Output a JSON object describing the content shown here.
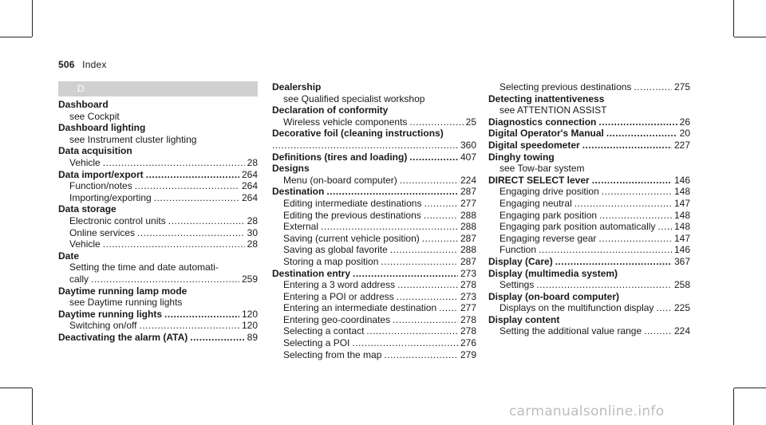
{
  "header": {
    "page_number": "506",
    "section": "Index"
  },
  "band_letter": "D",
  "col1": [
    {
      "t": "h",
      "text": "Dashboard"
    },
    {
      "t": "s",
      "text": "see Cockpit"
    },
    {
      "t": "h",
      "text": "Dashboard lighting"
    },
    {
      "t": "s",
      "text": "see Instrument cluster lighting"
    },
    {
      "t": "h",
      "text": "Data acquisition"
    },
    {
      "t": "sp",
      "text": "Vehicle",
      "page": "28"
    },
    {
      "t": "hp",
      "text": "Data import/export",
      "page": "264"
    },
    {
      "t": "sp",
      "text": "Function/notes",
      "page": "264"
    },
    {
      "t": "sp",
      "text": "Importing/exporting",
      "page": "264"
    },
    {
      "t": "h",
      "text": "Data storage"
    },
    {
      "t": "sp",
      "text": "Electronic control units",
      "page": "28"
    },
    {
      "t": "sp",
      "text": "Online services",
      "page": "30"
    },
    {
      "t": "sp",
      "text": "Vehicle",
      "page": "28"
    },
    {
      "t": "h",
      "text": "Date"
    },
    {
      "t": "s",
      "text": "Setting the time and date automati-"
    },
    {
      "t": "sp",
      "text": "cally",
      "page": "259"
    },
    {
      "t": "h",
      "text": "Daytime running lamp mode"
    },
    {
      "t": "s",
      "text": "see Daytime running lights"
    },
    {
      "t": "hp",
      "text": "Daytime running lights",
      "page": "120"
    },
    {
      "t": "sp",
      "text": "Switching on/off",
      "page": "120"
    },
    {
      "t": "hp",
      "text": "Deactivating the alarm (ATA)",
      "page": "89"
    }
  ],
  "col2": [
    {
      "t": "h",
      "text": "Dealership"
    },
    {
      "t": "s",
      "text": "see Qualified specialist workshop"
    },
    {
      "t": "h",
      "text": "Declaration of conformity"
    },
    {
      "t": "sp",
      "text": "Wireless vehicle components",
      "page": "25"
    },
    {
      "t": "h",
      "text": "Decorative foil (cleaning instructions)"
    },
    {
      "t": "dp",
      "page": "360"
    },
    {
      "t": "hp",
      "text": "Definitions (tires and loading)",
      "page": "407"
    },
    {
      "t": "h",
      "text": "Designs"
    },
    {
      "t": "sp",
      "text": "Menu (on-board computer)",
      "page": "224"
    },
    {
      "t": "hp",
      "text": "Destination",
      "page": "287"
    },
    {
      "t": "sp",
      "text": "Editing intermediate destinations",
      "page": "277"
    },
    {
      "t": "sp",
      "text": "Editing the previous destinations",
      "page": "288"
    },
    {
      "t": "sp",
      "text": "External",
      "page": "288"
    },
    {
      "t": "sp",
      "text": "Saving (current vehicle position)",
      "page": "287"
    },
    {
      "t": "sp",
      "text": "Saving as global favorite",
      "page": "288"
    },
    {
      "t": "sp",
      "text": "Storing a map position",
      "page": "287"
    },
    {
      "t": "hp",
      "text": "Destination entry",
      "page": "273"
    },
    {
      "t": "sp",
      "text": "Entering a 3 word address",
      "page": "278"
    },
    {
      "t": "sp",
      "text": "Entering a POI or address",
      "page": "273"
    },
    {
      "t": "sp",
      "text": "Entering an intermediate destination",
      "page": "277"
    },
    {
      "t": "sp",
      "text": "Entering geo-coordinates",
      "page": "278"
    },
    {
      "t": "sp",
      "text": "Selecting a contact",
      "page": "278"
    },
    {
      "t": "sp",
      "text": "Selecting a POI",
      "page": "276"
    },
    {
      "t": "sp",
      "text": "Selecting from the map",
      "page": "279"
    }
  ],
  "col3": [
    {
      "t": "sp",
      "text": "Selecting previous destinations",
      "page": "275"
    },
    {
      "t": "h",
      "text": "Detecting inattentiveness"
    },
    {
      "t": "s",
      "text": "see ATTENTION ASSIST"
    },
    {
      "t": "hp",
      "text": "Diagnostics connection",
      "page": "26"
    },
    {
      "t": "hp",
      "text": "Digital Operator's Manual",
      "page": "20"
    },
    {
      "t": "hp",
      "text": "Digital speedometer",
      "page": "227"
    },
    {
      "t": "h",
      "text": "Dinghy towing"
    },
    {
      "t": "s",
      "text": "see Tow-bar system"
    },
    {
      "t": "hp",
      "text": "DIRECT SELECT lever",
      "page": "146"
    },
    {
      "t": "sp",
      "text": "Engaging drive position",
      "page": "148"
    },
    {
      "t": "sp",
      "text": "Engaging neutral",
      "page": "147"
    },
    {
      "t": "sp",
      "text": "Engaging park position",
      "page": "148"
    },
    {
      "t": "sp",
      "text": "Engaging park position automatically",
      "page": "148"
    },
    {
      "t": "sp",
      "text": "Engaging reverse gear",
      "page": "147"
    },
    {
      "t": "sp",
      "text": "Function",
      "page": "146"
    },
    {
      "t": "hp",
      "text": "Display (Care)",
      "page": "367"
    },
    {
      "t": "h",
      "text": "Display (multimedia system)"
    },
    {
      "t": "sp",
      "text": "Settings",
      "page": "258"
    },
    {
      "t": "h",
      "text": "Display (on-board computer)"
    },
    {
      "t": "sp",
      "text": "Displays on the multifunction display",
      "page": "225"
    },
    {
      "t": "h",
      "text": "Display content"
    },
    {
      "t": "sp",
      "text": "Setting the additional value range",
      "page": "224"
    }
  ],
  "watermark": "carmanualsonline.info"
}
